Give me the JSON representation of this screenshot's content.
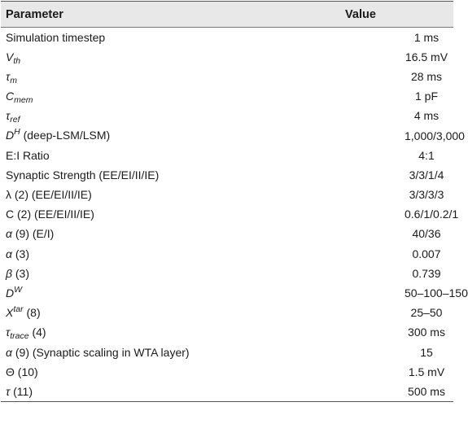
{
  "table": {
    "headers": {
      "parameter": "Parameter",
      "value": "Value"
    },
    "rows": [
      {
        "sym": "",
        "sub": "",
        "sup": "",
        "rest": "Simulation timestep",
        "value": "1 ms"
      },
      {
        "sym": "V",
        "sub": "th",
        "sup": "",
        "rest": "",
        "value": "16.5 mV"
      },
      {
        "sym": "τ",
        "sub": "m",
        "sup": "",
        "rest": "",
        "value": "28 ms"
      },
      {
        "sym": "C",
        "sub": "mem",
        "sup": "",
        "rest": "",
        "value": "1 pF"
      },
      {
        "sym": "τ",
        "sub": "ref",
        "sup": "",
        "rest": "",
        "value": "4 ms"
      },
      {
        "sym": "D",
        "sub": "",
        "sup": "H",
        "rest": " (deep-LSM/LSM)",
        "value": "1,000/3,000"
      },
      {
        "sym": "",
        "sub": "",
        "sup": "",
        "rest": "E:I Ratio",
        "value": "4:1"
      },
      {
        "sym": "",
        "sub": "",
        "sup": "",
        "rest": "Synaptic Strength (EE/EI/II/IE)",
        "value": "3/3/1/4"
      },
      {
        "sym": "",
        "sub": "",
        "sup": "",
        "rest": "λ (2) (EE/EI/II/IE)",
        "value": "3/3/3/3"
      },
      {
        "sym": "",
        "sub": "",
        "sup": "",
        "rest": "C (2) (EE/EI/II/IE)",
        "value": "0.6/1/0.2/1"
      },
      {
        "sym": "α",
        "sub": "",
        "sup": "",
        "rest": " (9) (E/I)",
        "value": "40/36"
      },
      {
        "sym": "α",
        "sub": "",
        "sup": "",
        "rest": " (3)",
        "value": "0.007"
      },
      {
        "sym": "β",
        "sub": "",
        "sup": "",
        "rest": " (3)",
        "value": "0.739"
      },
      {
        "sym": "D",
        "sub": "",
        "sup": "W",
        "rest": "",
        "value": "50–100–150"
      },
      {
        "sym": "X",
        "sub": "",
        "sup": "tar",
        "rest": " (8)",
        "value": "25–50"
      },
      {
        "sym": "τ",
        "sub": "trace",
        "sup": "",
        "rest": " (4)",
        "value": "300 ms"
      },
      {
        "sym": "α",
        "sub": "",
        "sup": "",
        "rest": " (9) (Synaptic scaling in WTA layer)",
        "value": "15"
      },
      {
        "sym": "",
        "sub": "",
        "sup": "",
        "rest": "Θ (10)",
        "value": "1.5 mV"
      },
      {
        "sym": "τ",
        "sub": "",
        "sup": "",
        "rest": " (11)",
        "value": "500 ms"
      }
    ]
  }
}
